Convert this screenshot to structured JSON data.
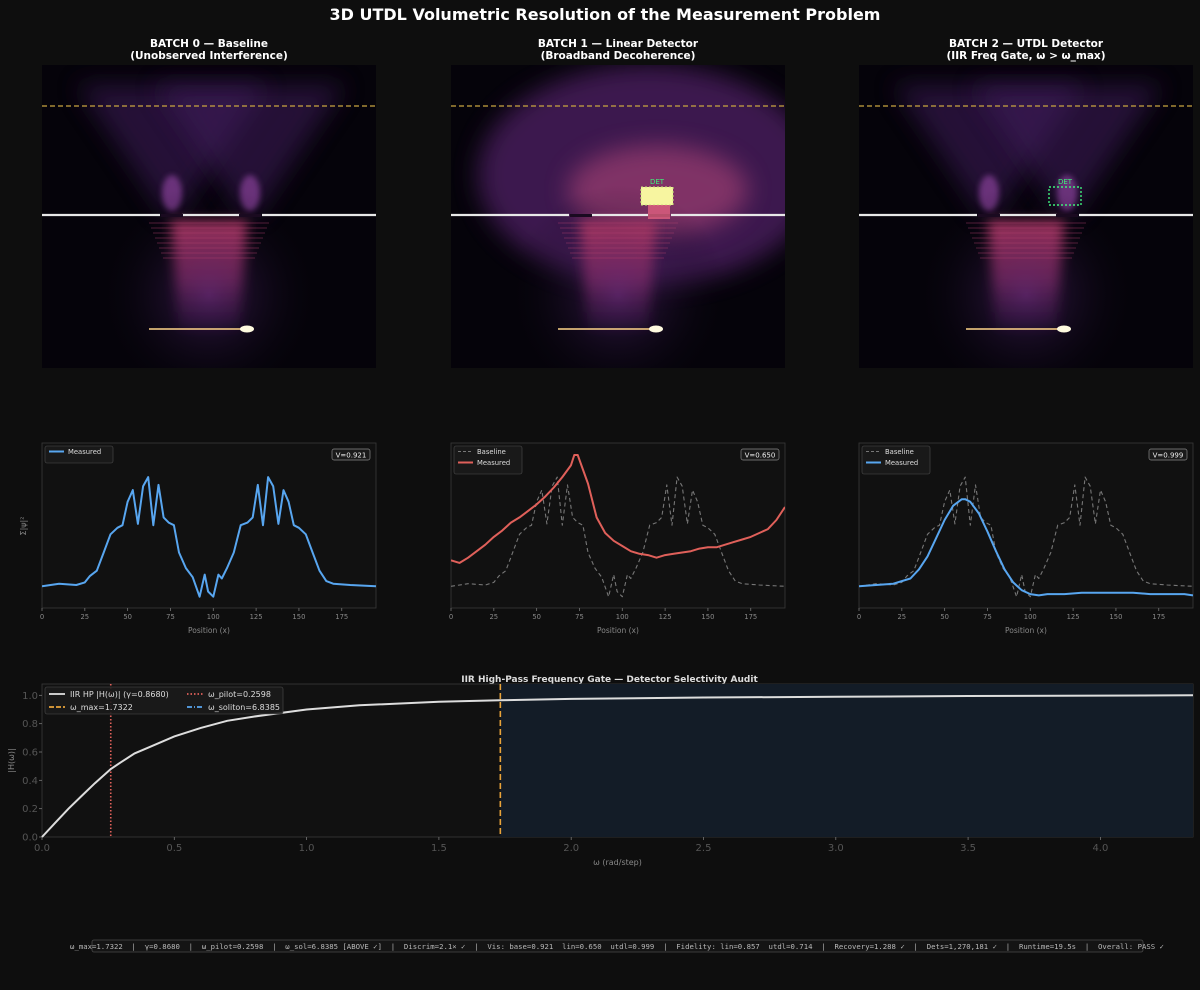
{
  "figure": {
    "title": "3D UTDL Volumetric Resolution of the Measurement Problem",
    "status_bar": "ω_max=1.7322  |  γ=0.8680  |  ω_pilot=0.2598  |  ω_sol=6.8385 [ABOVE ✓]  |  Discrim=2.1× ✓  |  Vis: base=0.921  lin=0.650  utdl=0.999  |  Fidelity: lin=0.857  utdl=0.714  |  Recovery=1.288 ✓  |  Dets=1,270,181 ✓  |  Runtime=19.5s  |  Overall: PASS ✓"
  },
  "heatmaps": [
    {
      "title_line1": "BATCH 0 — Baseline",
      "title_line2": "(Unobserved Interference)",
      "detector": false,
      "det_label": ""
    },
    {
      "title_line1": "BATCH 1 — Linear Detector",
      "title_line2": "(Broadband Decoherence)",
      "detector": true,
      "det_label": "DET",
      "det_style": "filled"
    },
    {
      "title_line1": "BATCH 2 — UTDL Detector",
      "title_line2": "(IIR Freq Gate, ω > ω_max)",
      "detector": true,
      "det_label": "DET",
      "det_style": "dotted"
    }
  ],
  "colors": {
    "measured_blue": "#58a6f0",
    "measured_red": "#e0605a",
    "baseline_gray": "#777777",
    "gate_line": "#dddddd",
    "omega_max": "#e8a33a",
    "omega_pilot": "#e0605a",
    "omega_soliton": "#58a6f0",
    "screen_line": "#c9a640",
    "pass_band": "#131c27"
  },
  "chart_data": [
    {
      "type": "line",
      "title": "",
      "xlabel": "Position (x)",
      "ylabel": "Σ|ψ|²",
      "xlim": [
        0,
        195
      ],
      "xticks": [
        0,
        25,
        50,
        75,
        100,
        125,
        150,
        175
      ],
      "legend": "top-left",
      "badge": "V=0.921",
      "series": [
        {
          "name": "Measured",
          "color": "#58a6f0",
          "style": "solid",
          "x": [
            0,
            10,
            20,
            25,
            28,
            32,
            36,
            40,
            44,
            47,
            50,
            53,
            56,
            59,
            62,
            65,
            68,
            71,
            74,
            77,
            80,
            84,
            88,
            92,
            95,
            97,
            100,
            103,
            105,
            108,
            112,
            116,
            120,
            123,
            126,
            129,
            132,
            135,
            138,
            141,
            144,
            147,
            150,
            154,
            158,
            162,
            166,
            170,
            180,
            195
          ],
          "y": [
            0.09,
            0.11,
            0.1,
            0.12,
            0.17,
            0.21,
            0.35,
            0.49,
            0.54,
            0.56,
            0.74,
            0.83,
            0.57,
            0.86,
            0.93,
            0.56,
            0.87,
            0.62,
            0.58,
            0.56,
            0.35,
            0.23,
            0.16,
            0.01,
            0.18,
            0.05,
            0.01,
            0.18,
            0.15,
            0.23,
            0.35,
            0.56,
            0.58,
            0.62,
            0.87,
            0.56,
            0.93,
            0.86,
            0.57,
            0.83,
            0.74,
            0.56,
            0.54,
            0.49,
            0.35,
            0.21,
            0.13,
            0.11,
            0.1,
            0.09
          ]
        }
      ]
    },
    {
      "type": "line",
      "title": "",
      "xlabel": "Position (x)",
      "ylabel": "",
      "xlim": [
        0,
        195
      ],
      "xticks": [
        0,
        25,
        50,
        75,
        100,
        125,
        150,
        175
      ],
      "legend": "top-left",
      "badge": "V=0.650",
      "series": [
        {
          "name": "Baseline",
          "color": "#777777",
          "style": "dashed",
          "x": [
            0,
            10,
            20,
            25,
            28,
            32,
            36,
            40,
            44,
            47,
            50,
            53,
            56,
            59,
            62,
            65,
            68,
            71,
            74,
            77,
            80,
            84,
            88,
            92,
            95,
            97,
            100,
            103,
            105,
            108,
            112,
            116,
            120,
            123,
            126,
            129,
            132,
            135,
            138,
            141,
            144,
            147,
            150,
            154,
            158,
            162,
            166,
            170,
            180,
            195
          ],
          "y": [
            0.09,
            0.11,
            0.1,
            0.12,
            0.17,
            0.21,
            0.35,
            0.49,
            0.54,
            0.56,
            0.74,
            0.83,
            0.57,
            0.86,
            0.93,
            0.56,
            0.87,
            0.62,
            0.58,
            0.56,
            0.35,
            0.23,
            0.16,
            0.01,
            0.18,
            0.05,
            0.01,
            0.18,
            0.15,
            0.23,
            0.35,
            0.56,
            0.58,
            0.62,
            0.87,
            0.56,
            0.93,
            0.86,
            0.57,
            0.83,
            0.74,
            0.56,
            0.54,
            0.49,
            0.35,
            0.21,
            0.13,
            0.11,
            0.1,
            0.09
          ]
        },
        {
          "name": "Measured",
          "color": "#e0605a",
          "style": "solid",
          "x": [
            0,
            5,
            10,
            15,
            20,
            25,
            30,
            35,
            40,
            45,
            50,
            55,
            60,
            65,
            70,
            72,
            74,
            80,
            85,
            90,
            95,
            100,
            105,
            110,
            115,
            120,
            125,
            130,
            135,
            140,
            145,
            150,
            155,
            160,
            165,
            170,
            175,
            180,
            185,
            190,
            195
          ],
          "y": [
            0.29,
            0.27,
            0.31,
            0.36,
            0.41,
            0.47,
            0.52,
            0.58,
            0.62,
            0.67,
            0.72,
            0.78,
            0.85,
            0.93,
            1.02,
            1.1,
            1.1,
            0.88,
            0.62,
            0.5,
            0.44,
            0.4,
            0.36,
            0.34,
            0.33,
            0.31,
            0.33,
            0.34,
            0.35,
            0.36,
            0.38,
            0.39,
            0.39,
            0.41,
            0.43,
            0.45,
            0.47,
            0.5,
            0.53,
            0.6,
            0.7
          ]
        }
      ]
    },
    {
      "type": "line",
      "title": "",
      "xlabel": "Position (x)",
      "ylabel": "",
      "xlim": [
        0,
        195
      ],
      "xticks": [
        0,
        25,
        50,
        75,
        100,
        125,
        150,
        175
      ],
      "legend": "top-left",
      "badge": "V=0.999",
      "series": [
        {
          "name": "Baseline",
          "color": "#777777",
          "style": "dashed",
          "x": [
            0,
            10,
            20,
            25,
            28,
            32,
            36,
            40,
            44,
            47,
            50,
            53,
            56,
            59,
            62,
            65,
            68,
            71,
            74,
            77,
            80,
            84,
            88,
            92,
            95,
            97,
            100,
            103,
            105,
            108,
            112,
            116,
            120,
            123,
            126,
            129,
            132,
            135,
            138,
            141,
            144,
            147,
            150,
            154,
            158,
            162,
            166,
            170,
            180,
            195
          ],
          "y": [
            0.09,
            0.11,
            0.1,
            0.12,
            0.17,
            0.21,
            0.35,
            0.49,
            0.54,
            0.56,
            0.74,
            0.83,
            0.57,
            0.86,
            0.93,
            0.56,
            0.87,
            0.62,
            0.58,
            0.56,
            0.35,
            0.23,
            0.16,
            0.01,
            0.18,
            0.05,
            0.01,
            0.18,
            0.15,
            0.23,
            0.35,
            0.56,
            0.58,
            0.62,
            0.87,
            0.56,
            0.93,
            0.86,
            0.57,
            0.83,
            0.74,
            0.56,
            0.54,
            0.49,
            0.35,
            0.21,
            0.13,
            0.11,
            0.1,
            0.09
          ]
        },
        {
          "name": "Measured",
          "color": "#58a6f0",
          "style": "solid",
          "x": [
            0,
            10,
            20,
            30,
            35,
            40,
            45,
            50,
            55,
            60,
            62,
            65,
            70,
            75,
            80,
            85,
            90,
            95,
            100,
            105,
            110,
            115,
            120,
            130,
            140,
            150,
            160,
            170,
            180,
            190,
            195
          ],
          "y": [
            0.09,
            0.1,
            0.11,
            0.15,
            0.22,
            0.32,
            0.46,
            0.6,
            0.71,
            0.76,
            0.76,
            0.74,
            0.65,
            0.51,
            0.36,
            0.22,
            0.12,
            0.06,
            0.03,
            0.02,
            0.03,
            0.03,
            0.03,
            0.04,
            0.04,
            0.04,
            0.04,
            0.03,
            0.03,
            0.03,
            0.02
          ]
        }
      ]
    },
    {
      "type": "line",
      "title": "IIR High-Pass Frequency Gate — Detector Selectivity Audit",
      "xlabel": "ω (rad/step)",
      "ylabel": "|H(ω)|",
      "xlim": [
        0,
        4.35
      ],
      "ylim": [
        0,
        1.08
      ],
      "xticks": [
        0.0,
        0.5,
        1.0,
        1.5,
        2.0,
        2.5,
        3.0,
        3.5,
        4.0
      ],
      "yticks": [
        0.0,
        0.2,
        0.4,
        0.6,
        0.8,
        1.0
      ],
      "legend": "top-left",
      "series": [
        {
          "name": "IIR HP  |H(ω)|  (γ=0.8680)",
          "color": "#dddddd",
          "style": "solid",
          "x": [
            0,
            0.05,
            0.1,
            0.15,
            0.2,
            0.26,
            0.3,
            0.35,
            0.4,
            0.5,
            0.6,
            0.7,
            0.8,
            1.0,
            1.2,
            1.5,
            1.73,
            2.0,
            2.5,
            3.0,
            3.5,
            4.0,
            4.35
          ],
          "y": [
            0,
            0.1,
            0.2,
            0.29,
            0.38,
            0.48,
            0.53,
            0.59,
            0.63,
            0.71,
            0.77,
            0.82,
            0.85,
            0.9,
            0.93,
            0.955,
            0.965,
            0.975,
            0.985,
            0.99,
            0.995,
            0.998,
            1.0
          ]
        },
        {
          "name": "ω_max=1.7322",
          "color": "#e8a33a",
          "style": "dashed",
          "vline": 1.7322
        },
        {
          "name": "ω_pilot=0.2598",
          "color": "#e0605a",
          "style": "dotted",
          "vline": 0.2598
        },
        {
          "name": "ω_soliton=6.8385",
          "color": "#58a6f0",
          "style": "dashdot",
          "vline": 6.8385
        }
      ]
    }
  ]
}
